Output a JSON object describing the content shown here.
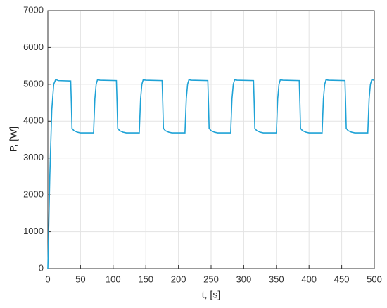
{
  "chart_data": {
    "type": "line",
    "xlabel": "t, [s]",
    "ylabel": "P, [W]",
    "x": [
      0,
      3,
      6,
      9,
      12,
      16,
      35,
      36,
      37,
      40,
      45,
      50,
      70,
      72,
      74,
      76,
      80,
      105,
      106,
      107,
      110,
      115,
      120,
      140,
      142,
      144,
      146,
      150,
      175,
      176,
      177,
      180,
      185,
      190,
      210,
      212,
      214,
      216,
      220,
      245,
      246,
      247,
      250,
      255,
      260,
      280,
      282,
      284,
      286,
      290,
      315,
      316,
      317,
      320,
      325,
      330,
      350,
      352,
      354,
      356,
      360,
      385,
      386,
      387,
      390,
      395,
      400,
      420,
      422,
      424,
      426,
      430,
      455,
      456,
      457,
      460,
      465,
      470,
      490,
      492,
      494,
      496,
      500
    ],
    "values": [
      0,
      2500,
      4300,
      5000,
      5130,
      5100,
      5090,
      4500,
      3800,
      3740,
      3700,
      3680,
      3680,
      4600,
      5000,
      5120,
      5110,
      5100,
      4500,
      3800,
      3740,
      3700,
      3680,
      3680,
      4600,
      5000,
      5120,
      5110,
      5100,
      4500,
      3800,
      3740,
      3700,
      3680,
      3680,
      4600,
      5000,
      5120,
      5110,
      5100,
      4500,
      3800,
      3740,
      3700,
      3680,
      3680,
      4600,
      5000,
      5120,
      5110,
      5100,
      4500,
      3800,
      3740,
      3700,
      3680,
      3680,
      4600,
      5000,
      5120,
      5110,
      5100,
      4500,
      3800,
      3740,
      3700,
      3680,
      3680,
      4600,
      5000,
      5120,
      5110,
      5100,
      4500,
      3800,
      3740,
      3700,
      3680,
      3680,
      4600,
      5000,
      5120,
      5110
    ],
    "color": "#1ea2d6",
    "xlim": [
      0,
      500
    ],
    "xticks": [
      0,
      50,
      100,
      150,
      200,
      250,
      300,
      350,
      400,
      450,
      500
    ],
    "ylim": [
      0,
      7000
    ],
    "yticks": [
      0,
      1000,
      2000,
      3000,
      4000,
      5000,
      6000,
      7000
    ],
    "grid": true
  }
}
